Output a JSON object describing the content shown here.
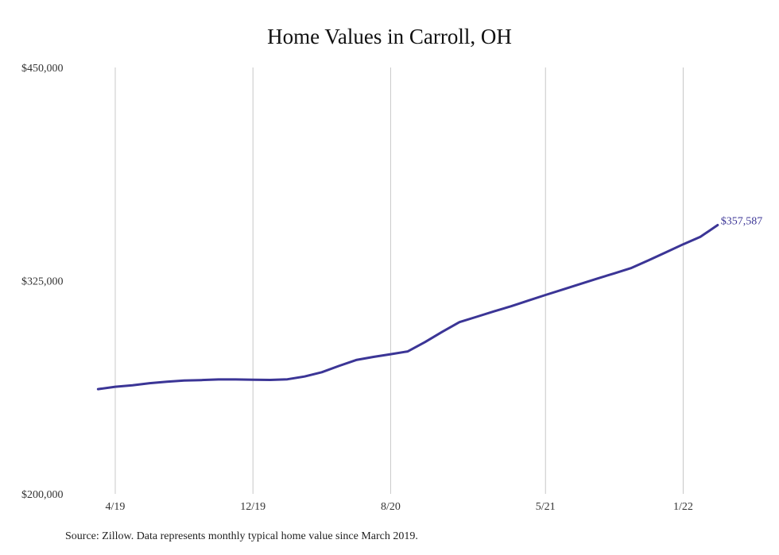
{
  "chart_data": {
    "type": "line",
    "title": "Home Values in Carroll, OH",
    "xlabel": "",
    "ylabel": "",
    "ylim": [
      200000,
      450000
    ],
    "yticks": [
      "$200,000",
      "$325,000",
      "$450,000"
    ],
    "ytick_values": [
      200000,
      325000,
      450000
    ],
    "xticks": [
      "4/19",
      "12/19",
      "8/20",
      "5/21",
      "1/22"
    ],
    "xtick_dates": [
      "2019-04",
      "2019-12",
      "2020-08",
      "2021-05",
      "2022-01"
    ],
    "grid": "vertical",
    "line_color": "#3b3596",
    "end_label": "$357,587",
    "series": [
      {
        "name": "",
        "x": [
          "2019-03",
          "2019-04",
          "2019-05",
          "2019-06",
          "2019-07",
          "2019-08",
          "2019-09",
          "2019-10",
          "2019-11",
          "2019-12",
          "2020-01",
          "2020-02",
          "2020-03",
          "2020-04",
          "2020-05",
          "2020-06",
          "2020-07",
          "2020-08",
          "2020-09",
          "2020-10",
          "2020-11",
          "2020-12",
          "2021-01",
          "2021-02",
          "2021-03",
          "2021-04",
          "2021-05",
          "2021-06",
          "2021-07",
          "2021-08",
          "2021-09",
          "2021-10",
          "2021-11",
          "2021-12",
          "2022-01",
          "2022-02",
          "2022-03"
        ],
        "values": [
          261400,
          262800,
          263700,
          264900,
          265800,
          266500,
          266700,
          267100,
          267100,
          266900,
          266800,
          267200,
          268800,
          271300,
          275000,
          278500,
          280300,
          281900,
          283500,
          289000,
          295000,
          300700,
          303800,
          307000,
          310000,
          313300,
          316600,
          319800,
          323000,
          326200,
          329300,
          332500,
          337000,
          341600,
          346300,
          350700,
          357587
        ]
      }
    ]
  },
  "footer": {
    "source": "Source: Zillow. Data represents monthly typical home value since March 2019."
  }
}
